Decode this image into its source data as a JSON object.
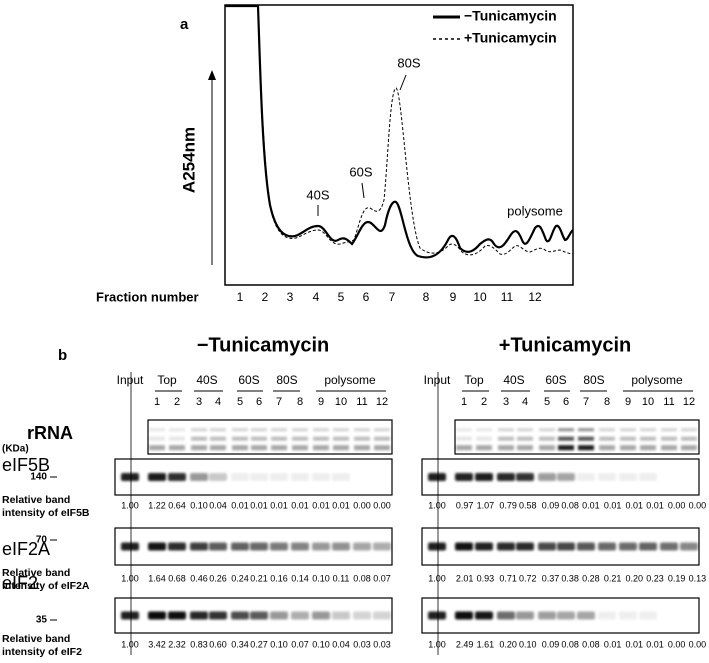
{
  "panel_a": {
    "label": "a",
    "legend": [
      "−Tunicamycin",
      "+Tunicamycin"
    ],
    "y_label": "A254nm",
    "peaks": [
      "40S",
      "60S",
      "80S",
      "polysome"
    ],
    "x_label": "Fraction number",
    "fractions": [
      "1",
      "2",
      "3",
      "4",
      "5",
      "6",
      "7",
      "8",
      "9",
      "10",
      "11",
      "12"
    ]
  },
  "panel_b": {
    "label": "b",
    "unit": "(KDa)",
    "column_headers": [
      "Input",
      "Top",
      "40S",
      "60S",
      "80S",
      "polysome"
    ],
    "fractions": [
      "1",
      "2",
      "3",
      "4",
      "5",
      "6",
      "7",
      "8",
      "9",
      "10",
      "11",
      "12"
    ],
    "rows": [
      {
        "name": "rRNA"
      },
      {
        "name": "eIF5B",
        "size": "140",
        "measure": [
          "Relative band",
          "intensity of eIF5B"
        ]
      },
      {
        "name": "eIF2A",
        "size": "70",
        "measure": [
          "Relative band",
          "intensity of eIF2A"
        ]
      },
      {
        "name": "eIF2",
        "size": "35",
        "measure": [
          "Relative band",
          "intensity of eIF2"
        ]
      }
    ],
    "conditions": [
      {
        "title": "−Tunicamycin",
        "intensities": [
          [
            "1.00",
            "1.22",
            "0.64",
            "0.10",
            "0.04",
            "0.01",
            "0.01",
            "0.01",
            "0.01",
            "0.01",
            "0.01",
            "0.00",
            "0.00"
          ],
          [
            "1.00",
            "1.64",
            "0.68",
            "0.46",
            "0.26",
            "0.24",
            "0.21",
            "0.16",
            "0.14",
            "0.10",
            "0.11",
            "0.08",
            "0.07"
          ],
          [
            "1.00",
            "3.42",
            "2.32",
            "0.83",
            "0.60",
            "0.34",
            "0.27",
            "0.10",
            "0.07",
            "0.10",
            "0.04",
            "0.03",
            "0.03"
          ]
        ]
      },
      {
        "title": "+Tunicamycin",
        "intensities": [
          [
            "1.00",
            "0.97",
            "1.07",
            "0.79",
            "0.58",
            "0.09",
            "0.08",
            "0.01",
            "0.01",
            "0.01",
            "0.01",
            "0.00",
            "0.00"
          ],
          [
            "1.00",
            "2.01",
            "0.93",
            "0.71",
            "0.72",
            "0.37",
            "0.38",
            "0.28",
            "0.21",
            "0.20",
            "0.23",
            "0.19",
            "0.13"
          ],
          [
            "1.00",
            "2.49",
            "1.61",
            "0.20",
            "0.10",
            "0.09",
            "0.08",
            "0.08",
            "0.01",
            "0.01",
            "0.01",
            "0.00",
            "0.00"
          ]
        ]
      }
    ]
  }
}
